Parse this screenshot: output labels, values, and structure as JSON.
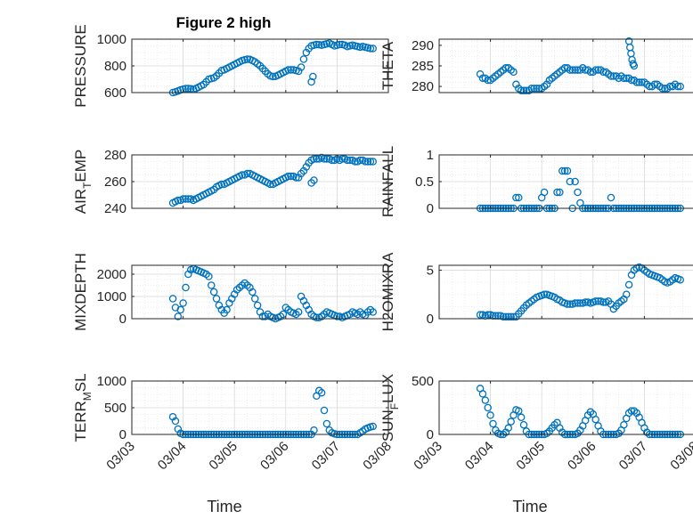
{
  "figure_title": "Figure 2 high",
  "xlabel": "Time",
  "x_ticks": [
    "03/03",
    "03/04",
    "03/05",
    "03/06",
    "03/07",
    "03/08"
  ],
  "marker_color": "#0072BD",
  "chart_data": [
    {
      "type": "scatter",
      "ylabel": "PRESSURE",
      "ylim": [
        600,
        1000
      ],
      "yticks": [
        600,
        800,
        1000
      ],
      "grid": true,
      "xlim": [
        0,
        5
      ],
      "x": [
        0.8,
        0.85,
        0.9,
        0.95,
        1.0,
        1.05,
        1.1,
        1.15,
        1.2,
        1.25,
        1.3,
        1.35,
        1.4,
        1.45,
        1.5,
        1.55,
        1.6,
        1.65,
        1.7,
        1.75,
        1.8,
        1.85,
        1.9,
        1.95,
        2.0,
        2.05,
        2.1,
        2.15,
        2.2,
        2.25,
        2.3,
        2.35,
        2.4,
        2.45,
        2.5,
        2.55,
        2.6,
        2.65,
        2.7,
        2.75,
        2.8,
        2.85,
        2.9,
        2.95,
        3.0,
        3.05,
        3.1,
        3.15,
        3.2,
        3.25,
        3.3,
        3.35,
        3.4,
        3.45,
        3.5,
        3.55,
        3.6,
        3.65,
        3.7,
        3.75,
        3.8,
        3.85,
        3.9,
        3.95,
        4.0,
        4.05,
        4.1,
        4.15,
        4.2,
        4.25,
        4.3,
        4.35,
        4.4,
        4.45,
        4.5,
        4.55,
        4.6,
        4.65,
        4.7,
        3.5,
        3.53
      ],
      "values": [
        600,
        605,
        612,
        620,
        625,
        630,
        630,
        628,
        625,
        630,
        640,
        650,
        660,
        680,
        700,
        705,
        710,
        725,
        745,
        765,
        770,
        780,
        790,
        800,
        810,
        820,
        830,
        840,
        845,
        850,
        848,
        840,
        830,
        815,
        800,
        780,
        760,
        740,
        725,
        720,
        722,
        730,
        740,
        750,
        760,
        770,
        770,
        770,
        765,
        760,
        790,
        850,
        900,
        930,
        950,
        955,
        960,
        958,
        955,
        960,
        965,
        970,
        960,
        950,
        955,
        960,
        960,
        955,
        945,
        950,
        955,
        950,
        945,
        940,
        945,
        940,
        935,
        930,
        930,
        680,
        720
      ]
    },
    {
      "type": "scatter",
      "ylabel": "THETA",
      "ylim": [
        278.5,
        291.5
      ],
      "yticks": [
        280,
        285,
        290
      ],
      "grid": true,
      "xlim": [
        0,
        5
      ],
      "x": [
        0.8,
        0.85,
        0.9,
        0.95,
        1.0,
        1.05,
        1.1,
        1.15,
        1.2,
        1.25,
        1.3,
        1.35,
        1.4,
        1.45,
        1.5,
        1.55,
        1.6,
        1.65,
        1.7,
        1.75,
        1.8,
        1.85,
        1.9,
        1.95,
        2.0,
        2.05,
        2.1,
        2.15,
        2.2,
        2.25,
        2.3,
        2.35,
        2.4,
        2.45,
        2.5,
        2.55,
        2.6,
        2.65,
        2.7,
        2.75,
        2.8,
        2.85,
        2.9,
        2.95,
        3.0,
        3.05,
        3.1,
        3.15,
        3.2,
        3.25,
        3.3,
        3.35,
        3.4,
        3.45,
        3.5,
        3.55,
        3.6,
        3.65,
        3.7,
        3.75,
        3.8,
        3.85,
        3.9,
        3.95,
        4.0,
        4.05,
        4.1,
        4.15,
        4.2,
        4.25,
        4.3,
        4.35,
        4.4,
        4.45,
        4.5,
        4.55,
        4.6,
        4.65,
        4.7,
        3.7,
        3.72,
        3.74,
        3.76,
        3.78,
        3.8
      ],
      "values": [
        283,
        282,
        282,
        281.5,
        281.5,
        282,
        282.5,
        283,
        283.5,
        284,
        284.5,
        284.5,
        284,
        283.5,
        280.5,
        279.5,
        279,
        279,
        279,
        279,
        279.5,
        279.5,
        279.5,
        279.5,
        279.5,
        280,
        280.5,
        281.5,
        282,
        282.5,
        283,
        283.5,
        284,
        284.5,
        284.5,
        284,
        284,
        284,
        284,
        284,
        284.5,
        284,
        284,
        283.5,
        283.5,
        284,
        284,
        284,
        283.5,
        283.5,
        283,
        282.5,
        282.5,
        282.5,
        282,
        282.5,
        282,
        282,
        282,
        281.5,
        281.5,
        281,
        281,
        281,
        281,
        280.5,
        280,
        280,
        280.5,
        280.5,
        280,
        279.5,
        279.5,
        279.5,
        280,
        280,
        280.5,
        280,
        280,
        291,
        289.5,
        288,
        286.5,
        285.5,
        285
      ]
    },
    {
      "type": "scatter",
      "ylabel": "AIR_T EMP",
      "ylim": [
        240,
        280
      ],
      "yticks": [
        240,
        260,
        280
      ],
      "grid": true,
      "xlim": [
        0,
        5
      ],
      "x": [
        0.8,
        0.85,
        0.9,
        0.95,
        1.0,
        1.05,
        1.1,
        1.15,
        1.2,
        1.25,
        1.3,
        1.35,
        1.4,
        1.45,
        1.5,
        1.55,
        1.6,
        1.65,
        1.7,
        1.75,
        1.8,
        1.85,
        1.9,
        1.95,
        2.0,
        2.05,
        2.1,
        2.15,
        2.2,
        2.25,
        2.3,
        2.35,
        2.4,
        2.45,
        2.5,
        2.55,
        2.6,
        2.65,
        2.7,
        2.75,
        2.8,
        2.85,
        2.9,
        2.95,
        3.0,
        3.05,
        3.1,
        3.15,
        3.2,
        3.25,
        3.3,
        3.35,
        3.4,
        3.45,
        3.5,
        3.55,
        3.6,
        3.65,
        3.7,
        3.75,
        3.8,
        3.85,
        3.9,
        3.95,
        4.0,
        4.05,
        4.1,
        4.15,
        4.2,
        4.25,
        4.3,
        4.35,
        4.4,
        4.45,
        4.5,
        4.55,
        4.6,
        4.65,
        4.7,
        3.5,
        3.55
      ],
      "values": [
        244,
        245,
        246,
        246,
        247,
        247,
        247,
        247,
        246,
        247,
        248,
        249,
        250,
        251,
        252,
        253,
        254,
        256,
        257,
        258,
        258,
        259,
        260,
        261,
        262,
        263,
        264,
        265,
        265,
        266,
        266,
        265,
        264,
        263,
        262,
        261,
        260,
        259,
        258,
        258,
        259,
        260,
        261,
        262,
        263,
        264,
        264,
        264,
        263,
        263,
        266,
        268,
        271,
        274,
        276,
        277,
        277,
        277,
        278,
        277,
        277,
        277,
        276,
        276,
        277,
        276,
        277,
        277,
        276,
        276,
        276,
        275,
        275,
        276,
        276,
        275,
        275,
        275,
        275,
        259,
        261
      ]
    },
    {
      "type": "scatter",
      "ylabel": "RAINFALL",
      "ylim": [
        0,
        1
      ],
      "yticks": [
        0,
        0.5,
        1
      ],
      "grid": true,
      "xlim": [
        0,
        5
      ],
      "x": [
        0.8,
        0.85,
        0.9,
        0.95,
        1.0,
        1.05,
        1.1,
        1.15,
        1.2,
        1.25,
        1.3,
        1.35,
        1.4,
        1.45,
        1.5,
        1.55,
        1.6,
        1.65,
        1.7,
        1.75,
        1.8,
        1.85,
        1.9,
        1.95,
        2.0,
        2.05,
        2.1,
        2.15,
        2.2,
        2.25,
        2.3,
        2.35,
        2.4,
        2.45,
        2.5,
        2.55,
        2.6,
        2.65,
        2.7,
        2.75,
        2.8,
        2.85,
        2.9,
        2.95,
        3.0,
        3.05,
        3.1,
        3.15,
        3.2,
        3.25,
        3.3,
        3.35,
        3.4,
        3.45,
        3.5,
        3.55,
        3.6,
        3.65,
        3.7,
        3.75,
        3.8,
        3.85,
        3.9,
        3.95,
        4.0,
        4.05,
        4.1,
        4.15,
        4.2,
        4.25,
        4.3,
        4.35,
        4.4,
        4.45,
        4.5,
        4.55,
        4.6,
        4.65,
        4.7
      ],
      "values": [
        0,
        0,
        0,
        0,
        0,
        0,
        0,
        0,
        0,
        0,
        0,
        0,
        0,
        0,
        0.2,
        0.2,
        0,
        0,
        0,
        0,
        0,
        0,
        0,
        0,
        0.2,
        0.3,
        0,
        0,
        0,
        0,
        0.3,
        0.3,
        0.7,
        0.7,
        0.7,
        0.5,
        0,
        0.5,
        0.3,
        0.1,
        0,
        0,
        0,
        0,
        0,
        0,
        0,
        0,
        0,
        0,
        0,
        0.2,
        0,
        0,
        0,
        0,
        0,
        0,
        0,
        0,
        0,
        0,
        0,
        0,
        0,
        0,
        0,
        0,
        0,
        0,
        0,
        0,
        0,
        0,
        0,
        0,
        0,
        0,
        0
      ]
    },
    {
      "type": "scatter",
      "ylabel": "MIXDEPTH",
      "ylim": [
        0,
        2400
      ],
      "yticks": [
        0,
        1000,
        2000
      ],
      "grid": true,
      "xlim": [
        0,
        5
      ],
      "x": [
        0.8,
        0.85,
        0.9,
        0.95,
        1.0,
        1.05,
        1.1,
        1.15,
        1.2,
        1.25,
        1.3,
        1.35,
        1.4,
        1.45,
        1.5,
        1.55,
        1.6,
        1.65,
        1.7,
        1.75,
        1.8,
        1.85,
        1.9,
        1.95,
        2.0,
        2.05,
        2.1,
        2.15,
        2.2,
        2.25,
        2.3,
        2.35,
        2.4,
        2.45,
        2.5,
        2.55,
        2.6,
        2.65,
        2.7,
        2.75,
        2.8,
        2.85,
        2.9,
        2.95,
        3.0,
        3.05,
        3.1,
        3.15,
        3.2,
        3.25,
        3.3,
        3.35,
        3.4,
        3.45,
        3.5,
        3.55,
        3.6,
        3.65,
        3.7,
        3.75,
        3.8,
        3.85,
        3.9,
        3.95,
        4.0,
        4.05,
        4.1,
        4.15,
        4.2,
        4.25,
        4.3,
        4.35,
        4.4,
        4.45,
        4.5,
        4.55,
        4.6,
        4.65,
        4.7
      ],
      "values": [
        900,
        500,
        100,
        400,
        700,
        1400,
        2000,
        2200,
        2250,
        2200,
        2150,
        2100,
        2050,
        2000,
        1900,
        1500,
        1200,
        900,
        600,
        400,
        250,
        400,
        700,
        900,
        1100,
        1300,
        1400,
        1500,
        1600,
        1500,
        1400,
        1200,
        900,
        600,
        300,
        100,
        100,
        200,
        100,
        50,
        0,
        50,
        100,
        200,
        500,
        400,
        300,
        250,
        200,
        300,
        1000,
        800,
        600,
        400,
        200,
        100,
        50,
        50,
        100,
        200,
        300,
        250,
        200,
        150,
        100,
        100,
        50,
        100,
        150,
        200,
        300,
        250,
        200,
        300,
        200,
        150,
        300,
        400,
        300
      ]
    },
    {
      "type": "scatter",
      "ylabel": "H2OMIXRA",
      "ylim": [
        0,
        5.5
      ],
      "yticks": [
        0,
        5
      ],
      "grid": true,
      "xlim": [
        0,
        5
      ],
      "x": [
        0.8,
        0.85,
        0.9,
        0.95,
        1.0,
        1.05,
        1.1,
        1.15,
        1.2,
        1.25,
        1.3,
        1.35,
        1.4,
        1.45,
        1.5,
        1.55,
        1.6,
        1.65,
        1.7,
        1.75,
        1.8,
        1.85,
        1.9,
        1.95,
        2.0,
        2.05,
        2.1,
        2.15,
        2.2,
        2.25,
        2.3,
        2.35,
        2.4,
        2.45,
        2.5,
        2.55,
        2.6,
        2.65,
        2.7,
        2.75,
        2.8,
        2.85,
        2.9,
        2.95,
        3.0,
        3.05,
        3.1,
        3.15,
        3.2,
        3.25,
        3.3,
        3.35,
        3.4,
        3.45,
        3.5,
        3.55,
        3.6,
        3.65,
        3.7,
        3.75,
        3.8,
        3.85,
        3.9,
        3.95,
        4.0,
        4.05,
        4.1,
        4.15,
        4.2,
        4.25,
        4.3,
        4.35,
        4.4,
        4.45,
        4.5,
        4.55,
        4.6,
        4.65,
        4.7
      ],
      "values": [
        0.4,
        0.4,
        0.3,
        0.4,
        0.4,
        0.3,
        0.3,
        0.3,
        0.3,
        0.2,
        0.2,
        0.2,
        0.2,
        0.2,
        0.2,
        0.5,
        0.8,
        1.1,
        1.4,
        1.6,
        1.8,
        2.0,
        2.2,
        2.3,
        2.4,
        2.5,
        2.5,
        2.4,
        2.3,
        2.2,
        2.0,
        1.9,
        1.7,
        1.6,
        1.5,
        1.5,
        1.5,
        1.6,
        1.6,
        1.6,
        1.6,
        1.7,
        1.7,
        1.6,
        1.7,
        1.8,
        1.8,
        1.8,
        1.7,
        1.7,
        1.8,
        1.5,
        1.0,
        1.3,
        1.6,
        1.8,
        2.0,
        2.5,
        3.5,
        4.5,
        5.0,
        5.2,
        5.3,
        5.2,
        5.0,
        4.8,
        4.6,
        4.5,
        4.4,
        4.3,
        4.2,
        4.0,
        3.8,
        3.7,
        3.8,
        4.0,
        4.2,
        4.1,
        4.0
      ]
    },
    {
      "type": "scatter",
      "ylabel": "TERR_M SL",
      "ylim": [
        0,
        1000
      ],
      "yticks": [
        0,
        500,
        1000
      ],
      "grid": true,
      "xlim": [
        0,
        5
      ],
      "x": [
        0.8,
        0.85,
        0.9,
        0.95,
        1.0,
        1.05,
        1.1,
        1.15,
        1.2,
        1.25,
        1.3,
        1.35,
        1.4,
        1.45,
        1.5,
        1.55,
        1.6,
        1.65,
        1.7,
        1.75,
        1.8,
        1.85,
        1.9,
        1.95,
        2.0,
        2.05,
        2.1,
        2.15,
        2.2,
        2.25,
        2.3,
        2.35,
        2.4,
        2.45,
        2.5,
        2.55,
        2.6,
        2.65,
        2.7,
        2.75,
        2.8,
        2.85,
        2.9,
        2.95,
        3.0,
        3.05,
        3.1,
        3.15,
        3.2,
        3.25,
        3.3,
        3.35,
        3.4,
        3.45,
        3.5,
        3.55,
        3.6,
        3.65,
        3.7,
        3.75,
        3.8,
        3.85,
        3.9,
        3.95,
        4.0,
        4.05,
        4.1,
        4.15,
        4.2,
        4.25,
        4.3,
        4.35,
        4.4,
        4.45,
        4.5,
        4.55,
        4.6,
        4.65,
        4.7
      ],
      "values": [
        330,
        250,
        100,
        20,
        0,
        0,
        0,
        0,
        0,
        0,
        0,
        0,
        0,
        0,
        0,
        0,
        0,
        0,
        0,
        0,
        0,
        0,
        0,
        0,
        0,
        0,
        0,
        0,
        0,
        0,
        0,
        0,
        0,
        0,
        0,
        0,
        0,
        0,
        0,
        0,
        0,
        0,
        0,
        0,
        0,
        0,
        0,
        0,
        0,
        0,
        0,
        0,
        0,
        0,
        0,
        80,
        720,
        820,
        780,
        450,
        200,
        80,
        30,
        10,
        0,
        0,
        0,
        0,
        0,
        0,
        0,
        0,
        0,
        30,
        60,
        100,
        120,
        140,
        150
      ]
    },
    {
      "type": "scatter",
      "ylabel": "SUN_F LUX",
      "ylim": [
        0,
        500
      ],
      "yticks": [
        0,
        500
      ],
      "grid": true,
      "xlim": [
        0,
        5
      ],
      "x": [
        0.8,
        0.85,
        0.9,
        0.95,
        1.0,
        1.05,
        1.1,
        1.15,
        1.2,
        1.25,
        1.3,
        1.35,
        1.4,
        1.45,
        1.5,
        1.55,
        1.6,
        1.65,
        1.7,
        1.75,
        1.8,
        1.85,
        1.9,
        1.95,
        2.0,
        2.05,
        2.1,
        2.15,
        2.2,
        2.25,
        2.3,
        2.35,
        2.4,
        2.45,
        2.5,
        2.55,
        2.6,
        2.65,
        2.7,
        2.75,
        2.8,
        2.85,
        2.9,
        2.95,
        3.0,
        3.05,
        3.1,
        3.15,
        3.2,
        3.25,
        3.3,
        3.35,
        3.4,
        3.45,
        3.5,
        3.55,
        3.6,
        3.65,
        3.7,
        3.75,
        3.8,
        3.85,
        3.9,
        3.95,
        4.0,
        4.05,
        4.1,
        4.15,
        4.2,
        4.25,
        4.3,
        4.35,
        4.4,
        4.45,
        4.5,
        4.55,
        4.6,
        4.65,
        4.7
      ],
      "values": [
        430,
        380,
        320,
        250,
        180,
        100,
        40,
        10,
        0,
        0,
        20,
        60,
        120,
        180,
        230,
        220,
        160,
        90,
        30,
        0,
        0,
        0,
        0,
        0,
        0,
        0,
        10,
        30,
        60,
        90,
        110,
        60,
        20,
        0,
        0,
        0,
        0,
        0,
        10,
        40,
        80,
        130,
        180,
        210,
        190,
        140,
        80,
        30,
        0,
        0,
        0,
        0,
        0,
        0,
        10,
        40,
        90,
        150,
        200,
        220,
        220,
        200,
        160,
        110,
        60,
        20,
        0,
        0,
        0,
        0,
        0,
        0,
        0,
        0,
        0,
        0,
        0,
        0,
        0
      ]
    }
  ]
}
